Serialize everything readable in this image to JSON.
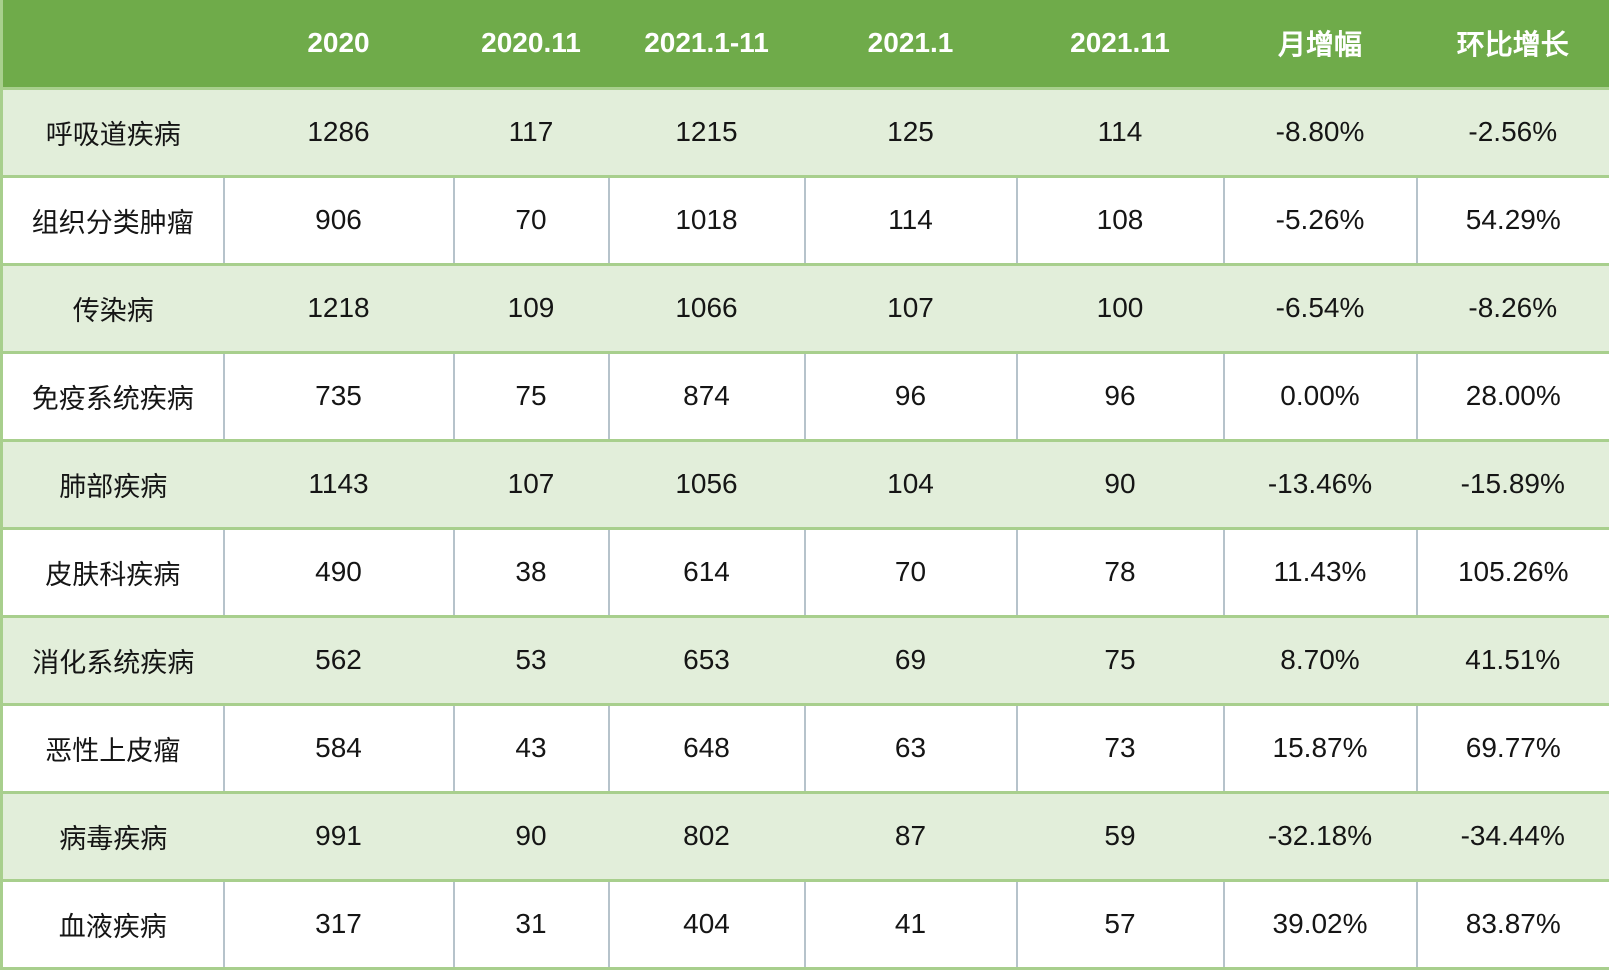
{
  "colors": {
    "header_bg": "#6fab4a",
    "header_text": "#ffffff",
    "band_row_bg": "#e2eeda",
    "plain_row_bg": "#ffffff",
    "row_border_green": "#a8cf8d",
    "cell_divider_gray": "#b6c3cb",
    "body_text": "#151515"
  },
  "table": {
    "columns": [
      "",
      "2020",
      "2020.11",
      "2021.1-11",
      "2021.1",
      "2021.11",
      "月增幅",
      "环比增长"
    ],
    "rows": [
      {
        "label": "呼吸道疾病",
        "values": [
          "1286",
          "117",
          "1215",
          "125",
          "114",
          "-8.80%",
          "-2.56%"
        ]
      },
      {
        "label": "组织分类肿瘤",
        "values": [
          "906",
          "70",
          "1018",
          "114",
          "108",
          "-5.26%",
          "54.29%"
        ]
      },
      {
        "label": "传染病",
        "values": [
          "1218",
          "109",
          "1066",
          "107",
          "100",
          "-6.54%",
          "-8.26%"
        ]
      },
      {
        "label": "免疫系统疾病",
        "values": [
          "735",
          "75",
          "874",
          "96",
          "96",
          "0.00%",
          "28.00%"
        ]
      },
      {
        "label": "肺部疾病",
        "values": [
          "1143",
          "107",
          "1056",
          "104",
          "90",
          "-13.46%",
          "-15.89%"
        ]
      },
      {
        "label": "皮肤科疾病",
        "values": [
          "490",
          "38",
          "614",
          "70",
          "78",
          "11.43%",
          "105.26%"
        ]
      },
      {
        "label": "消化系统疾病",
        "values": [
          "562",
          "53",
          "653",
          "69",
          "75",
          "8.70%",
          "41.51%"
        ]
      },
      {
        "label": "恶性上皮瘤",
        "values": [
          "584",
          "43",
          "648",
          "63",
          "73",
          "15.87%",
          "69.77%"
        ]
      },
      {
        "label": "病毒疾病",
        "values": [
          "991",
          "90",
          "802",
          "87",
          "59",
          "-32.18%",
          "-34.44%"
        ]
      },
      {
        "label": "血液疾病",
        "values": [
          "317",
          "31",
          "404",
          "41",
          "57",
          "39.02%",
          "83.87%"
        ]
      }
    ]
  },
  "chart_data": {
    "type": "table",
    "title": "",
    "columns": [
      "",
      "2020",
      "2020.11",
      "2021.1-11",
      "2021.1",
      "2021.11",
      "月增幅",
      "环比增长"
    ],
    "rows": [
      [
        "呼吸道疾病",
        1286,
        117,
        1215,
        125,
        114,
        "-8.80%",
        "-2.56%"
      ],
      [
        "组织分类肿瘤",
        906,
        70,
        1018,
        114,
        108,
        "-5.26%",
        "54.29%"
      ],
      [
        "传染病",
        1218,
        109,
        1066,
        107,
        100,
        "-6.54%",
        "-8.26%"
      ],
      [
        "免疫系统疾病",
        735,
        75,
        874,
        96,
        96,
        "0.00%",
        "28.00%"
      ],
      [
        "肺部疾病",
        1143,
        107,
        1056,
        104,
        90,
        "-13.46%",
        "-15.89%"
      ],
      [
        "皮肤科疾病",
        490,
        38,
        614,
        70,
        78,
        "11.43%",
        "105.26%"
      ],
      [
        "消化系统疾病",
        562,
        53,
        653,
        69,
        75,
        "8.70%",
        "41.51%"
      ],
      [
        "恶性上皮瘤",
        584,
        43,
        648,
        63,
        73,
        "15.87%",
        "69.77%"
      ],
      [
        "病毒疾病",
        991,
        90,
        802,
        87,
        59,
        "-32.18%",
        "-34.44%"
      ],
      [
        "血液疾病",
        317,
        31,
        404,
        41,
        57,
        "39.02%",
        "83.87%"
      ]
    ],
    "layout": {
      "banding": "alternate rows light green starting with first data row",
      "header_style": "solid green background, white bold text",
      "grid": "green horizontal borders between all rows; gray vertical dividers only inside white rows"
    }
  }
}
